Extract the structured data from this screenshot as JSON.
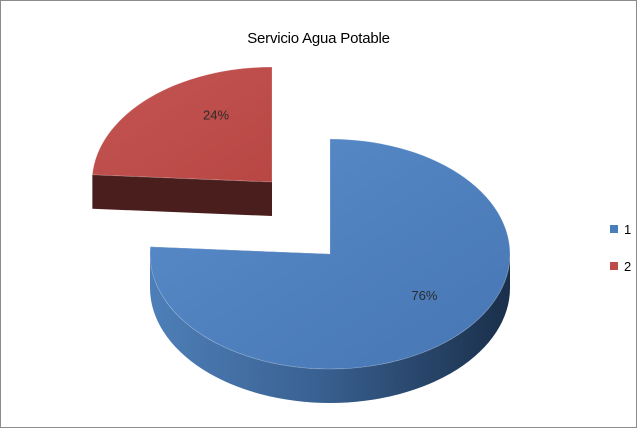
{
  "chart_data": {
    "type": "pie",
    "title": "Servicio Agua Potable",
    "categories": [
      "1",
      "2"
    ],
    "values": [
      76,
      24
    ],
    "labels": [
      "76%",
      "24%"
    ],
    "colors": [
      "#4a7ebb",
      "#be4b48"
    ],
    "side_colors": [
      "#2a4d77",
      "#4a1e1c"
    ],
    "legend_position": "right",
    "style": "3d-exploded"
  }
}
